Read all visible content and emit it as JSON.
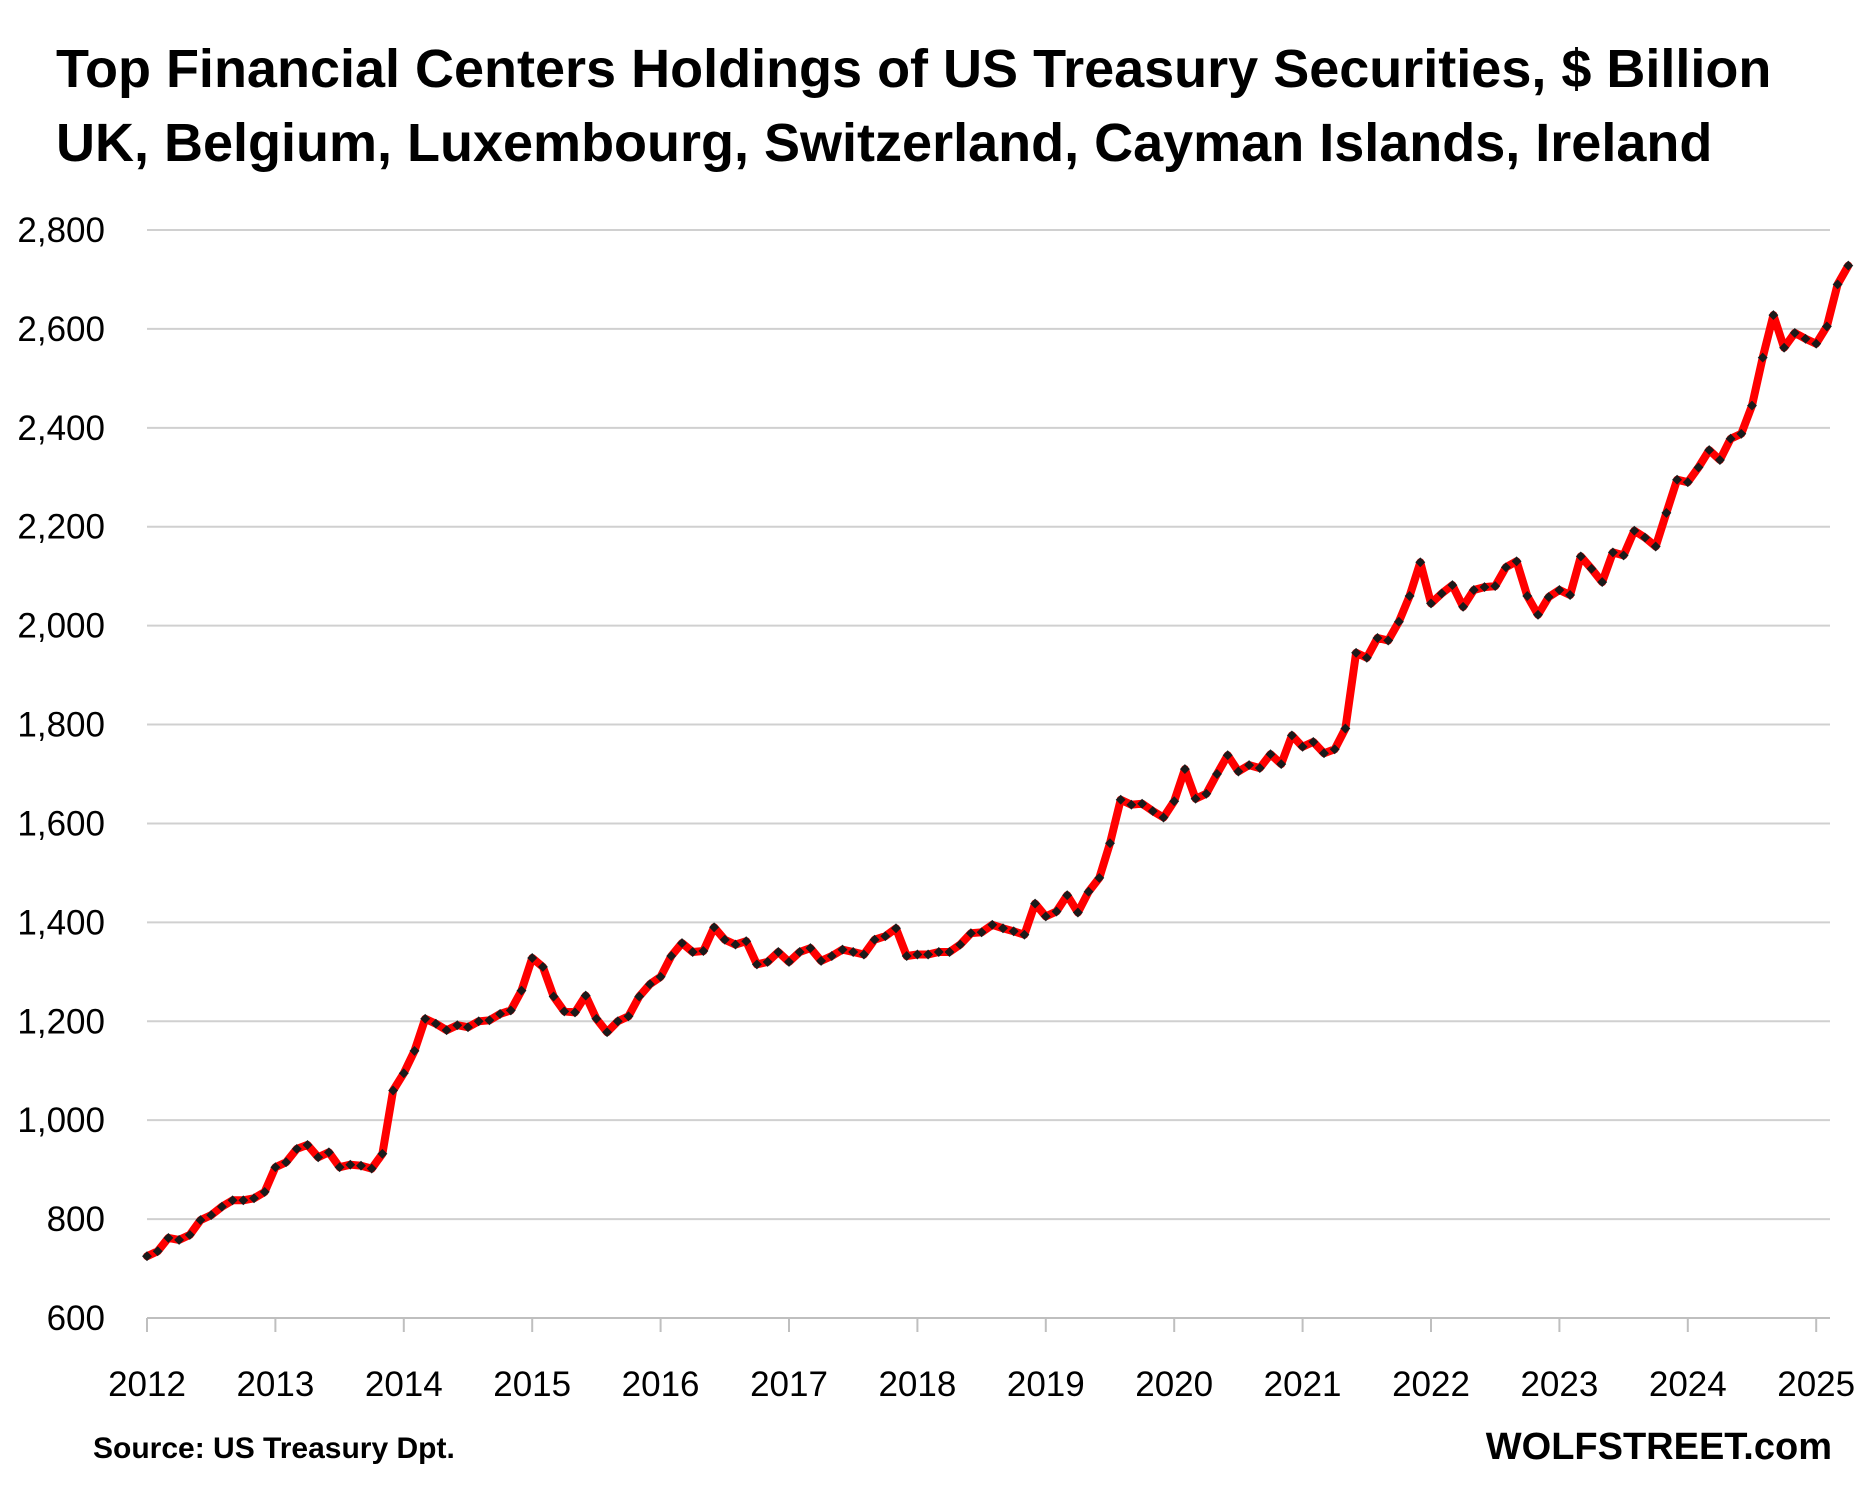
{
  "chart_data": {
    "type": "line",
    "title": "Top Financial Centers Holdings of US Treasury Securities, $ Billion",
    "subtitle": "UK, Belgium, Luxembourg, Switzerland, Cayman Islands, Ireland",
    "xlabel": "",
    "ylabel": "",
    "ylim": [
      600,
      2800
    ],
    "y_ticks": [
      600,
      800,
      1000,
      1200,
      1400,
      1600,
      1800,
      2000,
      2200,
      2400,
      2600,
      2800
    ],
    "y_tick_labels": [
      "600",
      "800",
      "1,000",
      "1,200",
      "1,400",
      "1,600",
      "1,800",
      "2,000",
      "2,200",
      "2,400",
      "2,600",
      "2,800"
    ],
    "x_ticks": [
      "2012",
      "2013",
      "2014",
      "2015",
      "2016",
      "2017",
      "2018",
      "2019",
      "2020",
      "2021",
      "2022",
      "2023",
      "2024",
      "2025"
    ],
    "start": "2012-01",
    "grid": true,
    "legend": "none",
    "line_color": "#ff0000",
    "marker_color": "#1a1a1a",
    "series": [
      {
        "values": [
          725,
          735,
          762,
          758,
          768,
          798,
          808,
          825,
          838,
          838,
          842,
          855,
          905,
          915,
          942,
          950,
          925,
          935,
          905,
          910,
          908,
          902,
          932,
          1060,
          1095,
          1140,
          1205,
          1195,
          1182,
          1192,
          1188,
          1200,
          1202,
          1215,
          1222,
          1262,
          1328,
          1310,
          1250,
          1220,
          1218,
          1252,
          1205,
          1178,
          1200,
          1210,
          1250,
          1275,
          1290,
          1332,
          1358,
          1340,
          1342,
          1390,
          1365,
          1355,
          1362,
          1315,
          1320,
          1340,
          1320,
          1340,
          1348,
          1322,
          1332,
          1345,
          1340,
          1335,
          1365,
          1372,
          1388,
          1332,
          1335,
          1335,
          1340,
          1340,
          1355,
          1378,
          1380,
          1395,
          1388,
          1382,
          1375,
          1438,
          1412,
          1422,
          1455,
          1420,
          1462,
          1490,
          1560,
          1648,
          1638,
          1640,
          1625,
          1612,
          1645,
          1710,
          1650,
          1660,
          1700,
          1738,
          1705,
          1718,
          1712,
          1740,
          1720,
          1778,
          1755,
          1765,
          1742,
          1750,
          1792,
          1945,
          1935,
          1975,
          1970,
          2008,
          2060,
          2128,
          2045,
          2065,
          2082,
          2038,
          2072,
          2078,
          2080,
          2118,
          2130,
          2060,
          2022,
          2058,
          2072,
          2062,
          2140,
          2115,
          2088,
          2148,
          2142,
          2192,
          2178,
          2160,
          2228,
          2295,
          2290,
          2320,
          2355,
          2335,
          2378,
          2388,
          2445,
          2542,
          2628,
          2562,
          2592,
          2580,
          2570,
          2605,
          2690,
          2728
        ]
      }
    ]
  },
  "footer": {
    "source": "Source: US Treasury  Dpt.",
    "brand": "WOLFSTREET.com"
  }
}
